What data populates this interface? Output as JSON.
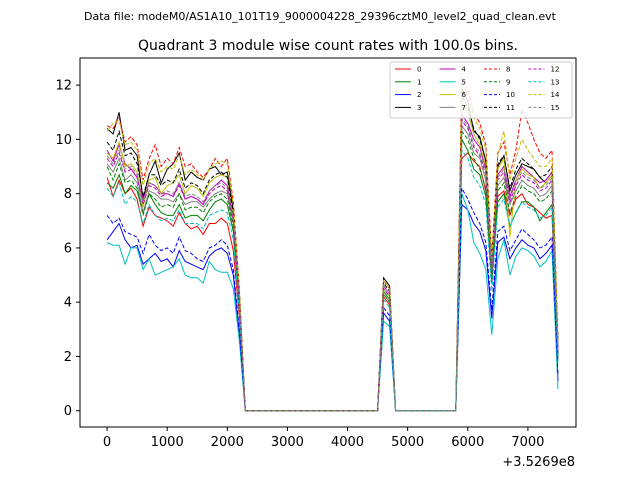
{
  "chart_data": {
    "type": "line",
    "suptitle": "Data file: modeM0/AS1A10_101T19_9000004228_29396cztM0_level2_quad_clean.evt",
    "title": "Quadrant 3 module wise count rates with 100.0s bins.",
    "xlabel": "",
    "ylabel": "",
    "x_offset_label": "+3.5269e8",
    "xlim": [
      -450,
      7800
    ],
    "ylim": [
      -0.6,
      13.0
    ],
    "xticks": [
      0,
      1000,
      2000,
      3000,
      4000,
      5000,
      6000,
      7000
    ],
    "yticks": [
      0,
      2,
      4,
      6,
      8,
      10,
      12
    ],
    "grid": false,
    "legend_position": "top-right",
    "legend_columns": 4,
    "x": [
      0,
      100,
      200,
      300,
      400,
      500,
      600,
      700,
      800,
      900,
      1000,
      1100,
      1200,
      1300,
      1400,
      1500,
      1600,
      1700,
      1800,
      1900,
      2000,
      2100,
      2200,
      2300,
      2400,
      4500,
      4600,
      4700,
      4800,
      5800,
      5900,
      6000,
      6100,
      6200,
      6300,
      6400,
      6500,
      6600,
      6700,
      6800,
      6900,
      7000,
      7100,
      7200,
      7300,
      7400,
      7500
    ],
    "series": [
      {
        "name": "0",
        "color": "#ff0000",
        "dash": false,
        "values": [
          8.6,
          7.9,
          8.5,
          8.0,
          8.2,
          7.8,
          6.8,
          7.5,
          7.2,
          7.1,
          7.0,
          6.8,
          7.3,
          6.9,
          6.7,
          6.8,
          6.5,
          6.9,
          6.9,
          7.1,
          6.9,
          5.9,
          3.5,
          0.0,
          0.0,
          0.0,
          4.2,
          3.9,
          0.0,
          0.0,
          9.3,
          9.5,
          9.2,
          9.0,
          8.1,
          4.7,
          7.9,
          8.1,
          7.2,
          7.8,
          8.0,
          7.6,
          7.5,
          7.3,
          7.1,
          7.2,
          1.9
        ]
      },
      {
        "name": "1",
        "color": "#008000",
        "dash": false,
        "values": [
          8.4,
          8.2,
          8.7,
          8.0,
          8.3,
          8.1,
          7.3,
          8.0,
          7.6,
          7.3,
          7.2,
          7.2,
          7.6,
          7.1,
          7.2,
          7.2,
          7.0,
          7.4,
          7.7,
          7.8,
          7.6,
          6.6,
          3.8,
          0.0,
          0.0,
          0.0,
          4.4,
          4.1,
          0.0,
          0.0,
          10.0,
          9.6,
          8.9,
          8.7,
          7.9,
          4.9,
          7.7,
          8.0,
          6.8,
          7.3,
          7.7,
          7.7,
          7.5,
          7.0,
          7.3,
          7.6,
          2.0
        ]
      },
      {
        "name": "2",
        "color": "#0000ff",
        "dash": false,
        "values": [
          6.3,
          6.6,
          6.9,
          6.3,
          6.0,
          6.1,
          5.4,
          5.6,
          5.8,
          5.5,
          5.6,
          5.3,
          5.9,
          5.5,
          5.4,
          5.3,
          5.2,
          5.7,
          5.9,
          6.0,
          5.8,
          5.0,
          2.8,
          0.0,
          0.0,
          0.0,
          3.6,
          3.3,
          0.0,
          0.0,
          7.6,
          7.4,
          6.9,
          6.6,
          5.9,
          3.4,
          6.2,
          6.4,
          5.6,
          6.0,
          6.3,
          6.1,
          6.0,
          5.6,
          5.8,
          6.1,
          1.1
        ]
      },
      {
        "name": "3",
        "color": "#000000",
        "dash": false,
        "values": [
          10.4,
          10.2,
          11.0,
          9.6,
          9.7,
          9.4,
          7.8,
          8.7,
          9.2,
          8.4,
          8.9,
          9.1,
          9.5,
          8.5,
          8.8,
          8.6,
          8.5,
          8.9,
          9.0,
          8.7,
          8.8,
          7.4,
          4.4,
          0.0,
          0.0,
          0.0,
          4.9,
          4.6,
          0.0,
          0.0,
          11.9,
          11.4,
          10.3,
          10.1,
          9.2,
          5.4,
          9.0,
          9.4,
          8.1,
          8.7,
          9.1,
          9.0,
          8.9,
          8.6,
          8.4,
          8.7,
          2.4
        ]
      },
      {
        "name": "4",
        "color": "#bf00bf",
        "dash": false,
        "values": [
          9.6,
          9.2,
          9.8,
          9.1,
          8.9,
          8.6,
          7.8,
          8.4,
          8.3,
          8.0,
          8.0,
          7.9,
          8.4,
          7.8,
          7.9,
          7.8,
          7.6,
          8.1,
          8.3,
          8.5,
          8.3,
          7.1,
          4.2,
          0.0,
          0.0,
          0.0,
          4.6,
          4.3,
          0.0,
          0.0,
          10.9,
          10.6,
          10.0,
          9.7,
          8.9,
          5.2,
          8.7,
          9.0,
          7.9,
          8.5,
          9.0,
          8.8,
          8.6,
          8.4,
          8.5,
          8.8,
          2.3
        ]
      },
      {
        "name": "5",
        "color": "#00bfbf",
        "dash": false,
        "values": [
          6.2,
          6.1,
          6.1,
          5.4,
          6.0,
          6.0,
          5.2,
          5.6,
          5.0,
          5.1,
          5.2,
          5.3,
          5.6,
          5.0,
          4.9,
          4.9,
          4.7,
          5.5,
          5.2,
          5.1,
          5.1,
          4.5,
          2.6,
          0.0,
          0.0,
          0.0,
          3.3,
          3.1,
          0.0,
          0.0,
          8.0,
          7.4,
          6.2,
          5.8,
          5.2,
          2.8,
          5.6,
          6.3,
          5.0,
          5.7,
          6.0,
          5.9,
          5.7,
          5.3,
          5.5,
          5.9,
          0.8
        ]
      },
      {
        "name": "6",
        "color": "#bfbf00",
        "dash": false,
        "values": [
          9.5,
          9.3,
          9.9,
          9.0,
          9.1,
          8.8,
          7.5,
          8.5,
          8.6,
          8.0,
          8.3,
          8.4,
          8.7,
          8.0,
          8.3,
          8.2,
          7.9,
          8.4,
          8.6,
          8.7,
          8.6,
          7.2,
          4.3,
          0.0,
          0.0,
          0.0,
          4.5,
          4.2,
          0.0,
          0.0,
          11.5,
          11.0,
          10.2,
          9.8,
          9.0,
          5.4,
          8.9,
          9.3,
          6.4,
          8.5,
          8.9,
          8.7,
          8.6,
          8.2,
          8.4,
          8.7,
          2.2
        ]
      },
      {
        "name": "7",
        "color": "#808080",
        "dash": false,
        "values": [
          9.1,
          8.8,
          9.3,
          8.5,
          8.7,
          8.4,
          7.3,
          8.1,
          8.0,
          7.8,
          7.8,
          7.7,
          8.0,
          7.6,
          7.7,
          7.7,
          7.5,
          7.8,
          8.0,
          8.1,
          8.0,
          6.9,
          4.0,
          0.0,
          0.0,
          0.0,
          4.3,
          4.0,
          0.0,
          0.0,
          10.5,
          10.2,
          9.5,
          9.3,
          8.5,
          5.0,
          8.3,
          8.6,
          7.6,
          8.1,
          8.5,
          8.3,
          8.2,
          7.9,
          8.0,
          8.3,
          2.1
        ]
      },
      {
        "name": "8",
        "color": "#ff0000",
        "dash": true,
        "values": [
          10.5,
          10.4,
          10.8,
          9.9,
          10.1,
          9.8,
          8.5,
          9.3,
          9.8,
          9.0,
          9.3,
          9.1,
          9.7,
          9.0,
          9.1,
          8.8,
          8.6,
          8.9,
          9.3,
          9.0,
          9.3,
          7.7,
          4.5,
          0.0,
          0.0,
          0.0,
          4.8,
          4.5,
          0.0,
          0.0,
          12.3,
          11.8,
          11.0,
          10.6,
          9.8,
          5.7,
          9.5,
          9.9,
          8.7,
          9.6,
          11.1,
          10.6,
          10.0,
          9.5,
          9.3,
          9.6,
          2.6
        ]
      },
      {
        "name": "9",
        "color": "#008000",
        "dash": true,
        "values": [
          9.0,
          8.5,
          9.1,
          8.4,
          8.5,
          8.2,
          7.2,
          8.0,
          7.8,
          7.5,
          7.6,
          7.5,
          8.0,
          7.4,
          7.5,
          7.5,
          7.3,
          7.7,
          7.9,
          8.0,
          7.8,
          6.8,
          4.0,
          0.0,
          0.0,
          0.0,
          4.3,
          4.0,
          0.0,
          0.0,
          10.3,
          10.0,
          9.3,
          8.9,
          8.2,
          4.8,
          8.1,
          8.4,
          7.3,
          7.9,
          8.3,
          8.1,
          8.0,
          7.7,
          7.8,
          8.1,
          2.0
        ]
      },
      {
        "name": "10",
        "color": "#0000ff",
        "dash": true,
        "values": [
          7.2,
          6.9,
          7.1,
          6.6,
          6.5,
          6.4,
          5.8,
          6.5,
          6.1,
          5.9,
          6.0,
          5.8,
          6.4,
          5.9,
          5.8,
          5.6,
          5.5,
          6.0,
          6.1,
          6.3,
          6.1,
          5.2,
          3.0,
          0.0,
          0.0,
          0.0,
          3.8,
          3.5,
          0.0,
          0.0,
          8.2,
          7.8,
          7.3,
          6.9,
          6.2,
          3.7,
          6.6,
          6.8,
          5.9,
          6.3,
          6.7,
          6.5,
          6.3,
          6.0,
          6.1,
          6.4,
          1.3
        ]
      },
      {
        "name": "11",
        "color": "#000000",
        "dash": true,
        "values": [
          9.9,
          9.6,
          10.3,
          9.4,
          9.5,
          9.1,
          7.9,
          8.7,
          8.7,
          8.3,
          8.5,
          8.4,
          8.9,
          8.2,
          8.4,
          8.3,
          8.0,
          8.5,
          8.7,
          8.8,
          8.6,
          7.3,
          4.3,
          0.0,
          0.0,
          0.0,
          4.7,
          4.4,
          0.0,
          0.0,
          11.6,
          11.2,
          10.4,
          10.0,
          9.2,
          5.4,
          9.1,
          9.4,
          8.2,
          8.9,
          9.3,
          9.1,
          8.9,
          8.6,
          8.7,
          9.0,
          2.4
        ]
      },
      {
        "name": "12",
        "color": "#bf00bf",
        "dash": true,
        "values": [
          9.3,
          9.0,
          9.5,
          8.8,
          8.9,
          8.6,
          7.6,
          8.3,
          8.2,
          7.9,
          8.0,
          7.9,
          8.3,
          7.8,
          7.9,
          7.8,
          7.6,
          8.0,
          8.2,
          8.3,
          8.1,
          7.0,
          4.1,
          0.0,
          0.0,
          0.0,
          4.5,
          4.2,
          0.0,
          0.0,
          10.7,
          10.4,
          9.7,
          9.4,
          8.7,
          5.1,
          8.5,
          8.8,
          7.7,
          8.3,
          8.7,
          8.5,
          8.4,
          8.1,
          8.2,
          8.5,
          2.2
        ]
      },
      {
        "name": "13",
        "color": "#00bfbf",
        "dash": true,
        "values": [
          8.2,
          7.9,
          8.4,
          7.6,
          7.9,
          7.7,
          6.9,
          7.6,
          7.2,
          7.0,
          7.1,
          7.0,
          7.4,
          6.9,
          6.9,
          6.9,
          6.7,
          7.2,
          7.3,
          7.4,
          7.3,
          6.3,
          3.7,
          0.0,
          0.0,
          0.0,
          4.1,
          3.8,
          0.0,
          0.0,
          9.6,
          9.3,
          8.6,
          8.3,
          7.6,
          4.4,
          7.5,
          7.8,
          6.8,
          7.3,
          7.7,
          7.5,
          7.4,
          7.1,
          7.2,
          7.5,
          1.8
        ]
      },
      {
        "name": "14",
        "color": "#bfbf00",
        "dash": true,
        "values": [
          10.3,
          10.6,
          10.7,
          9.8,
          9.9,
          9.6,
          8.3,
          9.1,
          9.3,
          8.8,
          9.0,
          8.9,
          9.4,
          8.7,
          8.9,
          8.7,
          8.5,
          8.9,
          9.1,
          9.2,
          9.1,
          7.6,
          4.5,
          0.0,
          0.0,
          0.0,
          4.8,
          4.5,
          0.0,
          0.0,
          12.1,
          11.6,
          10.8,
          10.4,
          9.6,
          5.6,
          9.4,
          10.3,
          8.5,
          9.3,
          10.0,
          9.6,
          9.3,
          9.0,
          9.0,
          9.3,
          2.5
        ]
      },
      {
        "name": "15",
        "color": "#808080",
        "dash": true,
        "values": [
          9.4,
          9.1,
          9.6,
          8.9,
          9.0,
          8.7,
          7.7,
          8.4,
          8.3,
          8.0,
          8.1,
          8.0,
          8.4,
          7.9,
          8.0,
          7.9,
          7.7,
          8.1,
          8.3,
          8.4,
          8.2,
          7.1,
          4.2,
          0.0,
          0.0,
          0.0,
          4.6,
          4.3,
          0.0,
          0.0,
          10.8,
          10.5,
          9.8,
          9.5,
          8.8,
          5.2,
          8.6,
          8.9,
          7.8,
          8.4,
          8.8,
          8.6,
          8.5,
          8.2,
          8.3,
          8.6,
          2.3
        ]
      }
    ]
  }
}
